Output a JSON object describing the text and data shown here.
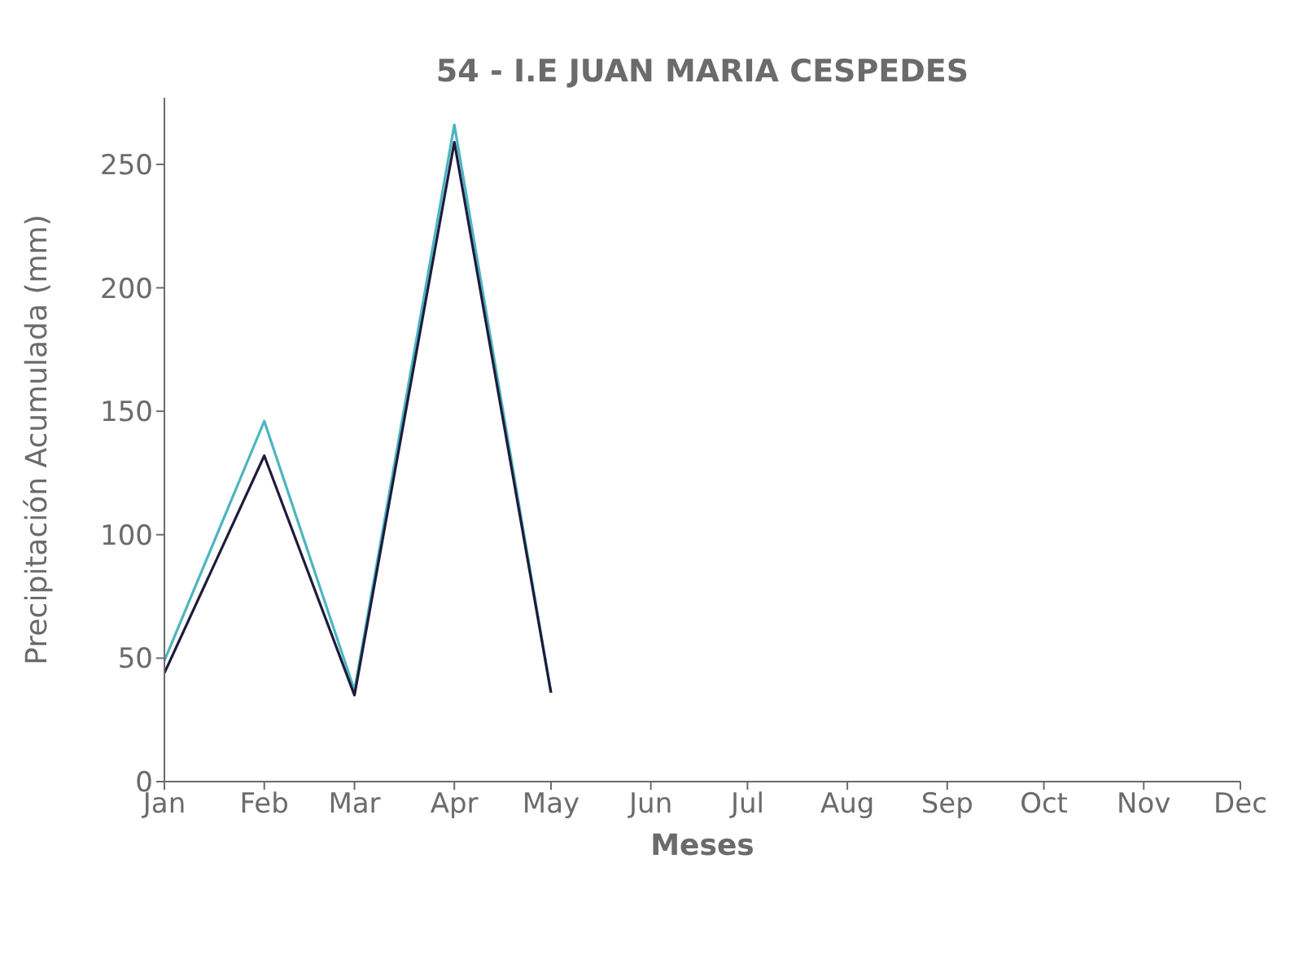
{
  "chart_data": {
    "type": "line",
    "title": "54 - I.E JUAN MARIA CESPEDES",
    "xlabel": "Meses",
    "ylabel": "Precipitación Acumulada (mm)",
    "x": [
      "--01-01",
      "--02-01",
      "--03-01",
      "--04-01",
      "--05-01"
    ],
    "series": [
      {
        "color": "#4cb5bf",
        "values": [
          49,
          146,
          37,
          266,
          36
        ]
      },
      {
        "color": "#1e1b3c",
        "values": [
          44,
          132,
          35,
          259,
          36
        ]
      }
    ],
    "xlim": [
      "--01-01",
      "--12-01"
    ],
    "xticks": [
      {
        "value": "--01-01",
        "label": "Jan"
      },
      {
        "value": "--02-01",
        "label": "Feb"
      },
      {
        "value": "--03-01",
        "label": "Mar"
      },
      {
        "value": "--04-01",
        "label": "Apr"
      },
      {
        "value": "--05-01",
        "label": "May"
      },
      {
        "value": "--06-01",
        "label": "Jun"
      },
      {
        "value": "--07-01",
        "label": "Jul"
      },
      {
        "value": "--08-01",
        "label": "Aug"
      },
      {
        "value": "--09-01",
        "label": "Sep"
      },
      {
        "value": "--10-01",
        "label": "Oct"
      },
      {
        "value": "--11-01",
        "label": "Nov"
      },
      {
        "value": "--12-01",
        "label": "Dec"
      }
    ],
    "ylim": [
      0,
      277
    ],
    "yticks": [
      0,
      50,
      100,
      150,
      200,
      250
    ],
    "grid": false,
    "legend": false,
    "marker": "none",
    "line_style": "solid"
  }
}
